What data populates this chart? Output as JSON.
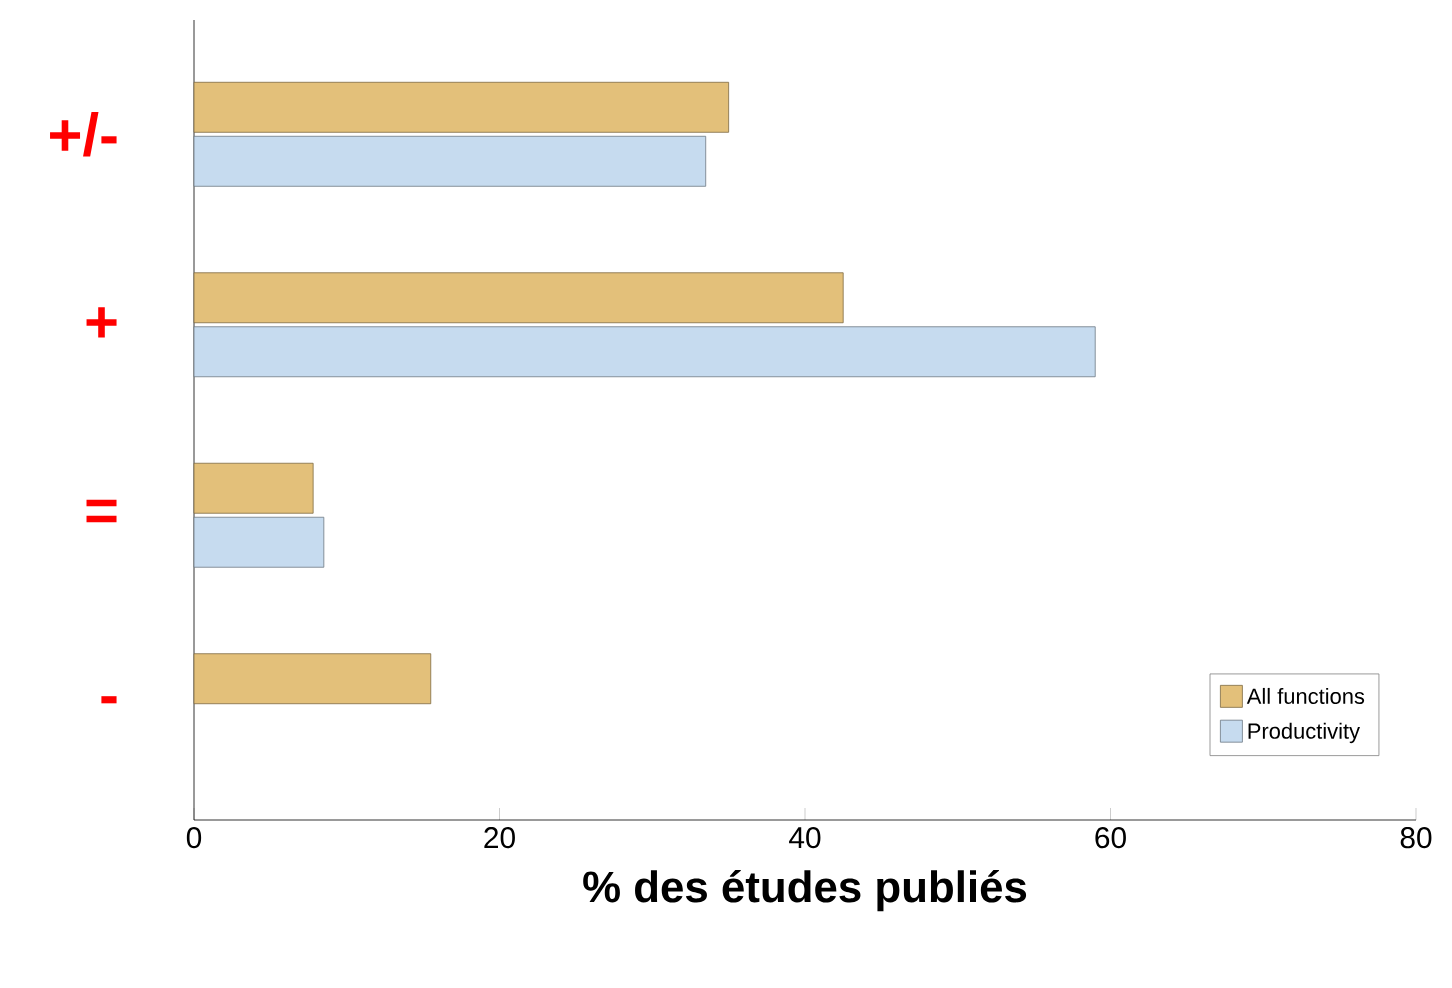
{
  "chart_data": {
    "type": "bar",
    "orientation": "horizontal",
    "xlabel": "**% des études publiés**",
    "categories": [
      "+/-",
      "+",
      "=",
      "-"
    ],
    "series": [
      {
        "name": "All functions",
        "color": "#e3c07a",
        "values": [
          35,
          42.5,
          7.8,
          15.5
        ]
      },
      {
        "name": "Productivity",
        "color": "#c6dbef",
        "values": [
          33.5,
          59,
          8.5,
          null
        ]
      }
    ],
    "xlim": [
      0,
      80
    ],
    "xticks": [
      0,
      20,
      40,
      60,
      80
    ],
    "legend": "bottom right"
  }
}
